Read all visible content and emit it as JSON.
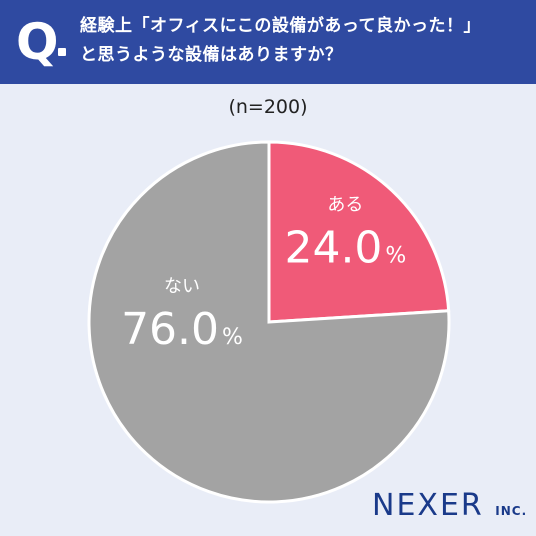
{
  "header": {
    "q_letter": "Q",
    "question_line1": "経験上「オフィスにこの設備があって良かった！」",
    "question_line2": "と思うような設備はありますか？"
  },
  "sample": "(n=200)",
  "chart_data": {
    "type": "pie",
    "start": "12 o'clock",
    "direction": "clockwise",
    "slices": [
      {
        "label": "ある",
        "value": 24.0,
        "display": "24.0",
        "unit": "%",
        "color": "#f05a78"
      },
      {
        "label": "ない",
        "value": 76.0,
        "display": "76.0",
        "unit": "%",
        "color": "#a3a3a3"
      }
    ]
  },
  "logo": {
    "main": "NEXER",
    "suffix": "INC."
  }
}
